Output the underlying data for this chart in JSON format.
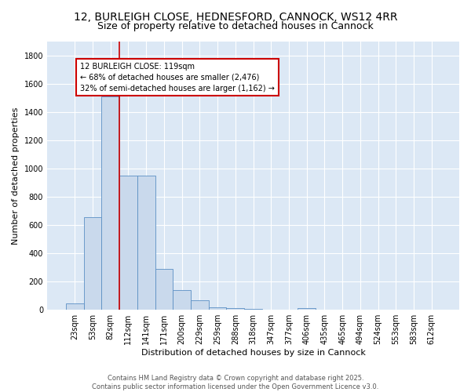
{
  "title": "12, BURLEIGH CLOSE, HEDNESFORD, CANNOCK, WS12 4RR",
  "subtitle": "Size of property relative to detached houses in Cannock",
  "xlabel": "Distribution of detached houses by size in Cannock",
  "ylabel": "Number of detached properties",
  "bar_labels": [
    "23sqm",
    "53sqm",
    "82sqm",
    "112sqm",
    "141sqm",
    "171sqm",
    "200sqm",
    "229sqm",
    "259sqm",
    "288sqm",
    "318sqm",
    "347sqm",
    "377sqm",
    "406sqm",
    "435sqm",
    "465sqm",
    "494sqm",
    "524sqm",
    "553sqm",
    "583sqm",
    "612sqm"
  ],
  "bar_values": [
    45,
    655,
    1510,
    950,
    950,
    290,
    140,
    65,
    20,
    10,
    5,
    3,
    2,
    10,
    0,
    0,
    0,
    0,
    0,
    0,
    0
  ],
  "bar_color": "#c9d9ec",
  "bar_edgecolor": "#5b8fc4",
  "vline_index": 3,
  "vline_color": "#cc0000",
  "annotation_line1": "12 BURLEIGH CLOSE: 119sqm",
  "annotation_line2": "← 68% of detached houses are smaller (2,476)",
  "annotation_line3": "32% of semi-detached houses are larger (1,162) →",
  "annotation_box_color": "white",
  "annotation_box_edgecolor": "#cc0000",
  "ylim": [
    0,
    1900
  ],
  "yticks": [
    0,
    200,
    400,
    600,
    800,
    1000,
    1200,
    1400,
    1600,
    1800
  ],
  "background_color": "#dce8f5",
  "grid_color": "white",
  "title_fontsize": 10,
  "subtitle_fontsize": 9,
  "axis_label_fontsize": 8,
  "tick_fontsize": 7,
  "footer_text": "Contains HM Land Registry data © Crown copyright and database right 2025.\nContains public sector information licensed under the Open Government Licence v3.0."
}
